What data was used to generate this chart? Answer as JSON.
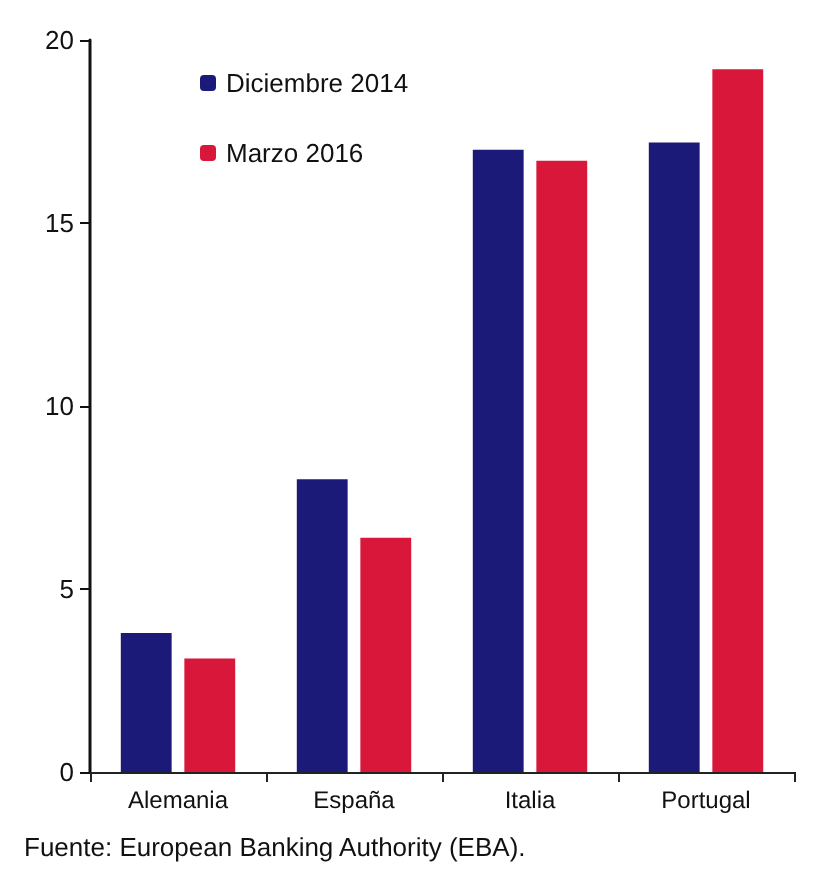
{
  "chart_data": {
    "type": "bar",
    "categories": [
      "Alemania",
      "España",
      "Italia",
      "Portugal"
    ],
    "series": [
      {
        "name": "Diciembre 2014",
        "color": "#1c1a78",
        "values": [
          3.8,
          8.0,
          17.0,
          17.2
        ]
      },
      {
        "name": "Marzo 2016",
        "color": "#d8173a",
        "values": [
          3.1,
          6.4,
          16.7,
          19.2
        ]
      }
    ],
    "ylim": [
      0,
      20
    ],
    "yticks": [
      0,
      5,
      10,
      15,
      20
    ],
    "grid": false,
    "legend": "top left",
    "annotations": [
      "Fuente: European Banking Authority (EBA)."
    ]
  }
}
